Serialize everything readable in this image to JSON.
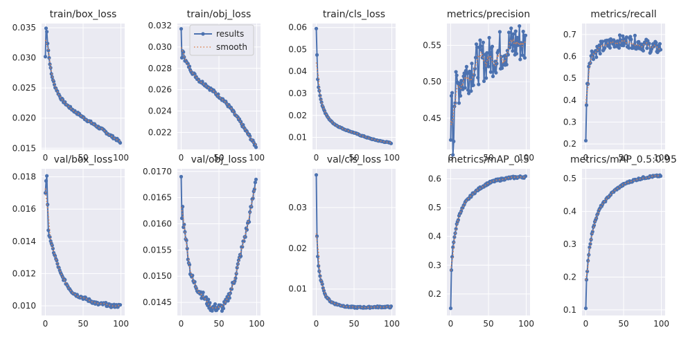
{
  "figure": {
    "legend": {
      "items": [
        "results",
        "smooth"
      ],
      "placement": "upper-right of panel train/obj_loss"
    },
    "colors": {
      "results": "#4c72b0",
      "smooth": "#dd8452",
      "background": "#eaeaf2",
      "grid": "#ffffff"
    }
  },
  "chart_data": [
    {
      "type": "line",
      "title": "train/box_loss",
      "xlabel": "",
      "ylabel": "",
      "grid": true,
      "xlim": [
        -5,
        105
      ],
      "xticks": [
        0,
        50,
        100
      ],
      "ylim": [
        0.0148,
        0.0357
      ],
      "yticks": [
        0.015,
        0.02,
        0.025,
        0.03,
        0.035
      ],
      "ytick_labels": [
        "0.015",
        "0.020",
        "0.025",
        "0.030",
        "0.035"
      ],
      "curve": [
        [
          0,
          0.0302
        ],
        [
          1,
          0.0349
        ],
        [
          2,
          0.0345
        ],
        [
          3,
          0.0325
        ],
        [
          5,
          0.03
        ],
        [
          8,
          0.0273
        ],
        [
          12,
          0.0255
        ],
        [
          16,
          0.0244
        ],
        [
          20,
          0.0234
        ],
        [
          25,
          0.0226
        ],
        [
          30,
          0.022
        ],
        [
          35,
          0.0215
        ],
        [
          40,
          0.021
        ],
        [
          45,
          0.0206
        ],
        [
          50,
          0.0201
        ],
        [
          55,
          0.0197
        ],
        [
          60,
          0.0193
        ],
        [
          65,
          0.0189
        ],
        [
          70,
          0.0185
        ],
        [
          75,
          0.0181
        ],
        [
          80,
          0.0177
        ],
        [
          85,
          0.0172
        ],
        [
          90,
          0.0168
        ],
        [
          95,
          0.0164
        ],
        [
          99,
          0.0159
        ]
      ],
      "noise": 0.0002
    },
    {
      "type": "line",
      "title": "train/obj_loss",
      "xlabel": "",
      "ylabel": "",
      "grid": true,
      "xlim": [
        -5,
        105
      ],
      "xticks": [
        0,
        50,
        100
      ],
      "ylim": [
        0.0204,
        0.0322
      ],
      "yticks": [
        0.022,
        0.024,
        0.026,
        0.028,
        0.03,
        0.032
      ],
      "ytick_labels": [
        "0.022",
        "0.024",
        "0.026",
        "0.028",
        "0.030",
        "0.032"
      ],
      "curve": [
        [
          0,
          0.0317
        ],
        [
          1,
          0.0289
        ],
        [
          2,
          0.0295
        ],
        [
          3,
          0.0296
        ],
        [
          5,
          0.0288
        ],
        [
          10,
          0.0282
        ],
        [
          15,
          0.0276
        ],
        [
          20,
          0.0272
        ],
        [
          25,
          0.0268
        ],
        [
          30,
          0.0266
        ],
        [
          35,
          0.0263
        ],
        [
          40,
          0.026
        ],
        [
          45,
          0.0257
        ],
        [
          50,
          0.0254
        ],
        [
          55,
          0.0251
        ],
        [
          60,
          0.0247
        ],
        [
          65,
          0.0243
        ],
        [
          70,
          0.0238
        ],
        [
          75,
          0.0233
        ],
        [
          80,
          0.0228
        ],
        [
          85,
          0.0222
        ],
        [
          90,
          0.0217
        ],
        [
          95,
          0.0211
        ],
        [
          99,
          0.0207
        ]
      ],
      "noise": 0.00015
    },
    {
      "type": "line",
      "title": "train/cls_loss",
      "xlabel": "",
      "ylabel": "",
      "grid": true,
      "xlim": [
        -5,
        105
      ],
      "xticks": [
        0,
        50,
        100
      ],
      "ylim": [
        0.0045,
        0.0618
      ],
      "yticks": [
        0.01,
        0.02,
        0.03,
        0.04,
        0.05,
        0.06
      ],
      "ytick_labels": [
        "0.01",
        "0.02",
        "0.03",
        "0.04",
        "0.05",
        "0.06"
      ],
      "curve": [
        [
          0,
          0.0595
        ],
        [
          1,
          0.0475
        ],
        [
          2,
          0.0365
        ],
        [
          3,
          0.033
        ],
        [
          5,
          0.029
        ],
        [
          8,
          0.0245
        ],
        [
          12,
          0.021
        ],
        [
          16,
          0.0188
        ],
        [
          20,
          0.0172
        ],
        [
          25,
          0.0158
        ],
        [
          30,
          0.0148
        ],
        [
          35,
          0.014
        ],
        [
          40,
          0.0133
        ],
        [
          45,
          0.0127
        ],
        [
          50,
          0.0121
        ],
        [
          55,
          0.0114
        ],
        [
          60,
          0.0108
        ],
        [
          65,
          0.0102
        ],
        [
          70,
          0.0096
        ],
        [
          75,
          0.0091
        ],
        [
          80,
          0.0087
        ],
        [
          85,
          0.0083
        ],
        [
          90,
          0.008
        ],
        [
          95,
          0.0077
        ],
        [
          99,
          0.0074
        ]
      ],
      "noise": 0.0002
    },
    {
      "type": "line",
      "title": "metrics/precision",
      "xlabel": "",
      "ylabel": "",
      "grid": true,
      "xlim": [
        -5,
        105
      ],
      "xticks": [
        0,
        50,
        100
      ],
      "ylim": [
        0.407,
        0.58
      ],
      "yticks": [
        0.45,
        0.5,
        0.55
      ],
      "ytick_labels": [
        "0.45",
        "0.50",
        "0.55"
      ],
      "curve": [
        [
          0,
          0.42
        ],
        [
          1,
          0.49
        ],
        [
          2,
          0.5
        ],
        [
          3,
          0.415
        ],
        [
          5,
          0.475
        ],
        [
          8,
          0.49
        ],
        [
          12,
          0.5
        ],
        [
          16,
          0.505
        ],
        [
          20,
          0.51
        ],
        [
          25,
          0.515
        ],
        [
          30,
          0.52
        ],
        [
          35,
          0.525
        ],
        [
          40,
          0.528
        ],
        [
          45,
          0.53
        ],
        [
          50,
          0.533
        ],
        [
          55,
          0.536
        ],
        [
          60,
          0.539
        ],
        [
          65,
          0.542
        ],
        [
          70,
          0.545
        ],
        [
          75,
          0.548
        ],
        [
          80,
          0.55
        ],
        [
          85,
          0.552
        ],
        [
          90,
          0.555
        ],
        [
          95,
          0.553
        ],
        [
          99,
          0.55
        ]
      ],
      "noise": 0.03
    },
    {
      "type": "line",
      "title": "metrics/recall",
      "xlabel": "",
      "ylabel": "",
      "grid": true,
      "xlim": [
        -5,
        105
      ],
      "xticks": [
        0,
        50,
        100
      ],
      "ylim": [
        0.175,
        0.75
      ],
      "yticks": [
        0.2,
        0.3,
        0.4,
        0.5,
        0.6,
        0.7
      ],
      "ytick_labels": [
        "0.2",
        "0.3",
        "0.4",
        "0.5",
        "0.6",
        "0.7"
      ],
      "curve": [
        [
          0,
          0.215
        ],
        [
          1,
          0.38
        ],
        [
          2,
          0.46
        ],
        [
          3,
          0.5
        ],
        [
          4,
          0.56
        ],
        [
          6,
          0.6
        ],
        [
          8,
          0.61
        ],
        [
          12,
          0.62
        ],
        [
          16,
          0.63
        ],
        [
          20,
          0.64
        ],
        [
          25,
          0.645
        ],
        [
          30,
          0.655
        ],
        [
          35,
          0.665
        ],
        [
          40,
          0.67
        ],
        [
          45,
          0.668
        ],
        [
          50,
          0.665
        ],
        [
          55,
          0.668
        ],
        [
          60,
          0.668
        ],
        [
          65,
          0.665
        ],
        [
          70,
          0.66
        ],
        [
          75,
          0.655
        ],
        [
          80,
          0.65
        ],
        [
          85,
          0.645
        ],
        [
          90,
          0.64
        ],
        [
          95,
          0.638
        ],
        [
          99,
          0.64
        ]
      ],
      "noise": 0.03
    },
    {
      "type": "line",
      "title": "val/box_loss",
      "xlabel": "",
      "ylabel": "",
      "grid": true,
      "xlim": [
        -5,
        105
      ],
      "xticks": [
        0,
        50,
        100
      ],
      "ylim": [
        0.0094,
        0.0185
      ],
      "yticks": [
        0.01,
        0.012,
        0.014,
        0.016,
        0.018
      ],
      "ytick_labels": [
        "0.010",
        "0.012",
        "0.014",
        "0.016",
        "0.018"
      ],
      "curve": [
        [
          0,
          0.017
        ],
        [
          1,
          0.0178
        ],
        [
          2,
          0.0181
        ],
        [
          3,
          0.0162
        ],
        [
          4,
          0.0146
        ],
        [
          6,
          0.0143
        ],
        [
          8,
          0.0138
        ],
        [
          12,
          0.0132
        ],
        [
          16,
          0.0126
        ],
        [
          20,
          0.012
        ],
        [
          25,
          0.0116
        ],
        [
          30,
          0.0112
        ],
        [
          35,
          0.0109
        ],
        [
          40,
          0.0107
        ],
        [
          45,
          0.0106
        ],
        [
          50,
          0.0105
        ],
        [
          55,
          0.0104
        ],
        [
          60,
          0.0103
        ],
        [
          65,
          0.0102
        ],
        [
          70,
          0.0101
        ],
        [
          75,
          0.0101
        ],
        [
          80,
          0.0101
        ],
        [
          85,
          0.01
        ],
        [
          90,
          0.01
        ],
        [
          95,
          0.01
        ],
        [
          99,
          0.01
        ]
      ],
      "noise": 0.0001
    },
    {
      "type": "line",
      "title": "val/obj_loss",
      "xlabel": "",
      "ylabel": "",
      "grid": true,
      "xlim": [
        -5,
        105
      ],
      "xticks": [
        0,
        50,
        100
      ],
      "ylim": [
        0.01425,
        0.01705
      ],
      "yticks": [
        0.0145,
        0.015,
        0.0155,
        0.016,
        0.0165,
        0.017
      ],
      "ytick_labels": [
        "0.0145",
        "0.0150",
        "0.0155",
        "0.0160",
        "0.0165",
        "0.0170"
      ],
      "curve": [
        [
          0,
          0.0169
        ],
        [
          1,
          0.0161
        ],
        [
          2,
          0.0163
        ],
        [
          3,
          0.016
        ],
        [
          5,
          0.0159
        ],
        [
          8,
          0.0155
        ],
        [
          12,
          0.0151
        ],
        [
          16,
          0.0149
        ],
        [
          20,
          0.0148
        ],
        [
          25,
          0.0147
        ],
        [
          30,
          0.0146
        ],
        [
          35,
          0.0145
        ],
        [
          40,
          0.0144
        ],
        [
          45,
          0.0144
        ],
        [
          50,
          0.0144
        ],
        [
          55,
          0.0144
        ],
        [
          60,
          0.0145
        ],
        [
          65,
          0.0147
        ],
        [
          70,
          0.0149
        ],
        [
          75,
          0.0152
        ],
        [
          80,
          0.0155
        ],
        [
          85,
          0.0158
        ],
        [
          90,
          0.0161
        ],
        [
          95,
          0.0165
        ],
        [
          99,
          0.0169
        ]
      ],
      "noise": 8e-05
    },
    {
      "type": "line",
      "title": "val/cls_loss",
      "xlabel": "",
      "ylabel": "",
      "grid": true,
      "xlim": [
        -5,
        105
      ],
      "xticks": [
        0,
        50,
        100
      ],
      "ylim": [
        0.0035,
        0.0395
      ],
      "yticks": [
        0.01,
        0.02,
        0.03
      ],
      "ytick_labels": [
        "0.01",
        "0.02",
        "0.03"
      ],
      "curve": [
        [
          0,
          0.038
        ],
        [
          1,
          0.023
        ],
        [
          2,
          0.018
        ],
        [
          3,
          0.0155
        ],
        [
          5,
          0.013
        ],
        [
          8,
          0.011
        ],
        [
          12,
          0.0085
        ],
        [
          16,
          0.0075
        ],
        [
          20,
          0.0068
        ],
        [
          25,
          0.0064
        ],
        [
          30,
          0.0061
        ],
        [
          35,
          0.0059
        ],
        [
          40,
          0.0057
        ],
        [
          45,
          0.0056
        ],
        [
          50,
          0.0055
        ],
        [
          55,
          0.0055
        ],
        [
          60,
          0.0055
        ],
        [
          65,
          0.0055
        ],
        [
          70,
          0.0055
        ],
        [
          75,
          0.0056
        ],
        [
          80,
          0.0056
        ],
        [
          85,
          0.0056
        ],
        [
          90,
          0.0056
        ],
        [
          95,
          0.0056
        ],
        [
          99,
          0.0056
        ]
      ],
      "noise": 0.0002
    },
    {
      "type": "line",
      "title": "metrics/mAP_0.5",
      "xlabel": "",
      "ylabel": "",
      "grid": true,
      "xlim": [
        -5,
        105
      ],
      "xticks": [
        0,
        50,
        100
      ],
      "ylim": [
        0.125,
        0.635
      ],
      "yticks": [
        0.2,
        0.3,
        0.4,
        0.5,
        0.6
      ],
      "ytick_labels": [
        "0.2",
        "0.3",
        "0.4",
        "0.5",
        "0.6"
      ],
      "curve": [
        [
          0,
          0.15
        ],
        [
          1,
          0.28
        ],
        [
          2,
          0.33
        ],
        [
          3,
          0.36
        ],
        [
          5,
          0.4
        ],
        [
          8,
          0.44
        ],
        [
          12,
          0.48
        ],
        [
          16,
          0.5
        ],
        [
          20,
          0.52
        ],
        [
          25,
          0.535
        ],
        [
          30,
          0.55
        ],
        [
          35,
          0.56
        ],
        [
          40,
          0.57
        ],
        [
          45,
          0.578
        ],
        [
          50,
          0.585
        ],
        [
          55,
          0.59
        ],
        [
          60,
          0.594
        ],
        [
          65,
          0.597
        ],
        [
          70,
          0.6
        ],
        [
          75,
          0.602
        ],
        [
          80,
          0.604
        ],
        [
          85,
          0.605
        ],
        [
          90,
          0.606
        ],
        [
          95,
          0.607
        ],
        [
          99,
          0.607
        ]
      ],
      "noise": 0.004
    },
    {
      "type": "line",
      "title": "metrics/mAP_0.5:0.95",
      "xlabel": "",
      "ylabel": "",
      "grid": true,
      "xlim": [
        -5,
        105
      ],
      "xticks": [
        0,
        50,
        100
      ],
      "ylim": [
        0.083,
        0.53
      ],
      "yticks": [
        0.1,
        0.2,
        0.3,
        0.4,
        0.5
      ],
      "ytick_labels": [
        "0.1",
        "0.2",
        "0.3",
        "0.4",
        "0.5"
      ],
      "curve": [
        [
          0,
          0.105
        ],
        [
          1,
          0.19
        ],
        [
          2,
          0.22
        ],
        [
          3,
          0.25
        ],
        [
          5,
          0.29
        ],
        [
          8,
          0.33
        ],
        [
          12,
          0.37
        ],
        [
          16,
          0.395
        ],
        [
          20,
          0.415
        ],
        [
          25,
          0.43
        ],
        [
          30,
          0.445
        ],
        [
          35,
          0.457
        ],
        [
          40,
          0.467
        ],
        [
          45,
          0.475
        ],
        [
          50,
          0.482
        ],
        [
          55,
          0.488
        ],
        [
          60,
          0.492
        ],
        [
          65,
          0.496
        ],
        [
          70,
          0.499
        ],
        [
          75,
          0.502
        ],
        [
          80,
          0.504
        ],
        [
          85,
          0.506
        ],
        [
          90,
          0.507
        ],
        [
          95,
          0.508
        ],
        [
          99,
          0.508
        ]
      ],
      "noise": 0.003
    }
  ]
}
